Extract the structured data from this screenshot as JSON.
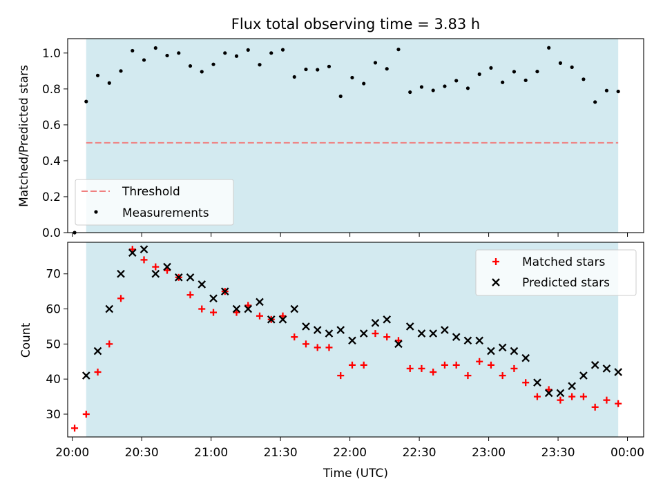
{
  "chart_data": [
    {
      "type": "scatter",
      "title": "Flux total observing time = 3.83 h",
      "xlabel": "",
      "ylabel": "Matched/Predicted stars",
      "xlim": [
        "19:58",
        "00:07"
      ],
      "ylim": [
        0,
        1.08
      ],
      "yticks": [
        "0.0",
        "0.2",
        "0.4",
        "0.6",
        "0.8",
        "1.0"
      ],
      "observing_window": [
        "20:06",
        "23:56"
      ],
      "observing_window_color": "#d3eaf0",
      "threshold": {
        "name": "Threshold",
        "y": 0.5,
        "color": "#f08080",
        "style": "dashed"
      },
      "legend_position": "lower left",
      "series": [
        {
          "name": "Measurements",
          "color": "#000000",
          "x": [
            "20:01",
            "20:06",
            "20:11",
            "20:16",
            "20:21",
            "20:26",
            "20:31",
            "20:36",
            "20:41",
            "20:46",
            "20:51",
            "20:56",
            "21:01",
            "21:06",
            "21:11",
            "21:16",
            "21:21",
            "21:26",
            "21:31",
            "21:36",
            "21:41",
            "21:46",
            "21:51",
            "21:56",
            "22:01",
            "22:06",
            "22:11",
            "22:16",
            "22:21",
            "22:26",
            "22:31",
            "22:36",
            "22:41",
            "22:46",
            "22:51",
            "22:56",
            "23:01",
            "23:06",
            "23:11",
            "23:16",
            "23:21",
            "23:26",
            "23:31",
            "23:36",
            "23:41",
            "23:46",
            "23:51",
            "23:56"
          ],
          "y": [
            0.0,
            0.73,
            0.875,
            0.833,
            0.9,
            1.013,
            0.961,
            1.028,
            0.986,
            1.0,
            0.928,
            0.896,
            0.937,
            1.0,
            0.983,
            1.017,
            0.935,
            1.0,
            1.018,
            0.867,
            0.909,
            0.907,
            0.925,
            0.759,
            0.863,
            0.83,
            0.946,
            0.912,
            1.02,
            0.782,
            0.811,
            0.792,
            0.815,
            0.846,
            0.804,
            0.882,
            0.917,
            0.837,
            0.896,
            0.848,
            0.897,
            1.029,
            0.944,
            0.921,
            0.854,
            0.727,
            0.791,
            0.786
          ]
        }
      ]
    },
    {
      "type": "scatter",
      "title": "",
      "xlabel": "Time (UTC)",
      "ylabel": "Count",
      "xticks": [
        "20:00",
        "20:30",
        "21:00",
        "21:30",
        "22:00",
        "22:30",
        "23:00",
        "23:30",
        "00:00"
      ],
      "yticks": [
        "30",
        "40",
        "50",
        "60",
        "70"
      ],
      "xlim": [
        "19:58",
        "00:07"
      ],
      "ylim": [
        23.5,
        79
      ],
      "observing_window": [
        "20:06",
        "23:56"
      ],
      "legend_position": "upper right",
      "series": [
        {
          "name": "Matched stars",
          "marker": "+",
          "color": "#ff0000",
          "x": [
            "20:01",
            "20:06",
            "20:11",
            "20:16",
            "20:21",
            "20:26",
            "20:31",
            "20:36",
            "20:41",
            "20:46",
            "20:51",
            "20:56",
            "21:01",
            "21:06",
            "21:11",
            "21:16",
            "21:21",
            "21:26",
            "21:31",
            "21:36",
            "21:41",
            "21:46",
            "21:51",
            "21:56",
            "22:01",
            "22:06",
            "22:11",
            "22:16",
            "22:21",
            "22:26",
            "22:31",
            "22:36",
            "22:41",
            "22:46",
            "22:51",
            "22:56",
            "23:01",
            "23:06",
            "23:11",
            "23:16",
            "23:21",
            "23:26",
            "23:31",
            "23:36",
            "23:41",
            "23:46",
            "23:51",
            "23:56"
          ],
          "y": [
            26,
            30,
            42,
            50,
            63,
            77,
            74,
            72,
            71,
            69,
            64,
            60,
            59,
            65,
            59,
            61,
            58,
            57,
            58,
            52,
            50,
            49,
            49,
            41,
            44,
            44,
            53,
            52,
            51,
            43,
            43,
            42,
            44,
            44,
            41,
            45,
            44,
            41,
            43,
            39,
            35,
            37,
            34,
            35,
            35,
            32,
            34,
            33
          ]
        },
        {
          "name": "Predicted stars",
          "marker": "x",
          "color": "#000000",
          "x": [
            "20:06",
            "20:11",
            "20:16",
            "20:21",
            "20:26",
            "20:31",
            "20:36",
            "20:41",
            "20:46",
            "20:51",
            "20:56",
            "21:01",
            "21:06",
            "21:11",
            "21:16",
            "21:21",
            "21:26",
            "21:31",
            "21:36",
            "21:41",
            "21:46",
            "21:51",
            "21:56",
            "22:01",
            "22:06",
            "22:11",
            "22:16",
            "22:21",
            "22:26",
            "22:31",
            "22:36",
            "22:41",
            "22:46",
            "22:51",
            "22:56",
            "23:01",
            "23:06",
            "23:11",
            "23:16",
            "23:21",
            "23:26",
            "23:31",
            "23:36",
            "23:41",
            "23:46",
            "23:51",
            "23:56"
          ],
          "y": [
            41,
            48,
            60,
            70,
            76,
            77,
            70,
            72,
            69,
            69,
            67,
            63,
            65,
            60,
            60,
            62,
            57,
            57,
            60,
            55,
            54,
            53,
            54,
            51,
            53,
            56,
            57,
            50,
            55,
            53,
            53,
            54,
            52,
            51,
            51,
            48,
            49,
            48,
            46,
            39,
            36,
            36,
            38,
            41,
            44,
            43,
            42
          ]
        }
      ]
    }
  ]
}
